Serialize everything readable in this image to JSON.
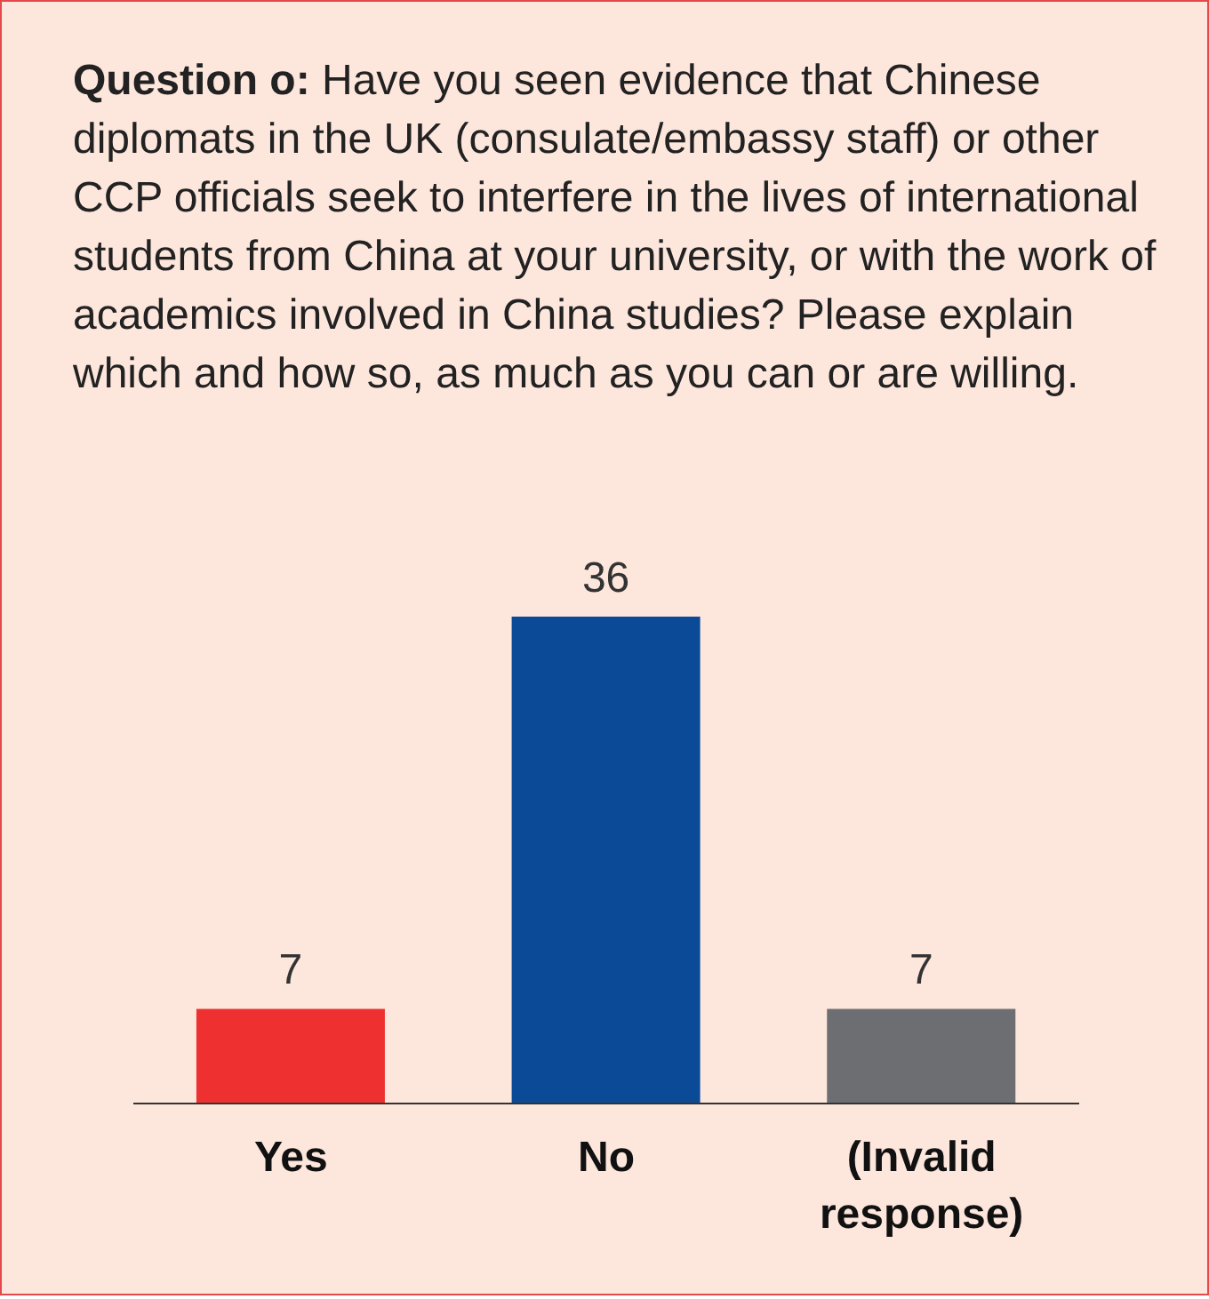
{
  "chart_data": {
    "type": "bar",
    "title": "Question o:",
    "subtitle": "Have you seen evidence that Chinese diplomats in the UK (consulate/embassy staff) or other CCP officials seek to interfere in the lives of international students from China at your university, or with the work of academics involved in China studies? Please explain which and how so, as much as you can or are willing.",
    "categories": [
      "Yes",
      "No",
      "(Invalid response)"
    ],
    "values": [
      7,
      36,
      7
    ],
    "colors": [
      "#ee3130",
      "#0b4a97",
      "#6d6e71"
    ],
    "data_labels": true
  }
}
